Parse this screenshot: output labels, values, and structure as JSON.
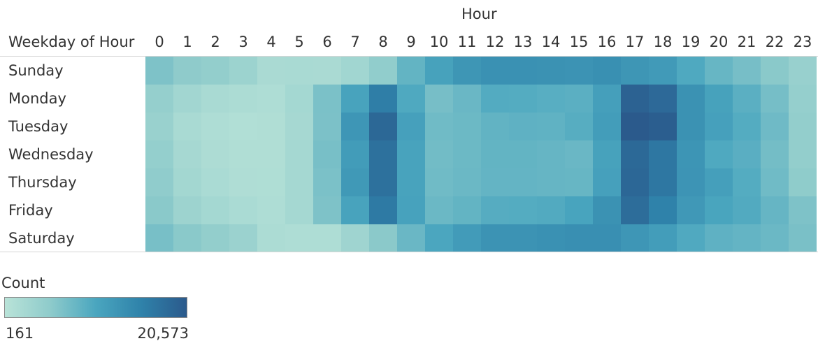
{
  "chart_data": {
    "type": "heatmap",
    "title": "",
    "column_header": "Hour",
    "row_header": "Weekday of Hour",
    "rows": [
      "Sunday",
      "Monday",
      "Tuesday",
      "Wednesday",
      "Thursday",
      "Friday",
      "Saturday"
    ],
    "columns": [
      "0",
      "1",
      "2",
      "3",
      "4",
      "5",
      "6",
      "7",
      "8",
      "9",
      "10",
      "11",
      "12",
      "13",
      "14",
      "15",
      "16",
      "17",
      "18",
      "19",
      "20",
      "21",
      "22",
      "23"
    ],
    "values": [
      [
        6500,
        5200,
        4700,
        3600,
        2000,
        2100,
        2000,
        3000,
        4900,
        8500,
        11000,
        12700,
        13300,
        13300,
        13200,
        13000,
        13500,
        12700,
        12000,
        10000,
        8200,
        7000,
        5600,
        4100
      ],
      [
        4400,
        2900,
        2100,
        1700,
        1500,
        2600,
        6700,
        10800,
        16000,
        10000,
        7000,
        8000,
        9700,
        9600,
        9300,
        9100,
        11300,
        19600,
        18600,
        13200,
        11000,
        9100,
        7100,
        4400
      ],
      [
        3900,
        2100,
        1500,
        1100,
        1200,
        2400,
        6600,
        12600,
        18800,
        11200,
        7500,
        7800,
        8600,
        8800,
        8700,
        9400,
        11700,
        20573,
        20000,
        13200,
        11200,
        9600,
        7600,
        4700
      ],
      [
        4500,
        2400,
        1600,
        1200,
        1200,
        2500,
        6900,
        11800,
        17600,
        10800,
        7400,
        7800,
        8500,
        8500,
        8300,
        8000,
        11000,
        18700,
        16900,
        12800,
        10000,
        9200,
        7200,
        4700
      ],
      [
        5000,
        2800,
        1900,
        1400,
        1300,
        2500,
        6700,
        12200,
        17700,
        10800,
        7500,
        7900,
        8400,
        8400,
        8300,
        8200,
        11200,
        18900,
        16900,
        12900,
        11300,
        9600,
        7500,
        5100
      ],
      [
        5600,
        3500,
        2600,
        1900,
        1500,
        2500,
        6500,
        10800,
        16500,
        10900,
        7900,
        8500,
        9500,
        9600,
        9800,
        10700,
        13200,
        18200,
        15500,
        12300,
        10500,
        9800,
        8300,
        6500
      ],
      [
        6900,
        5600,
        4700,
        3700,
        1700,
        1500,
        1500,
        3300,
        5500,
        8000,
        10300,
        11900,
        13000,
        13000,
        13300,
        13600,
        13600,
        12600,
        11700,
        9900,
        8800,
        8400,
        7900,
        6800
      ]
    ],
    "color_scale": {
      "title": "Count",
      "min_label": "161",
      "max_label": "20,573",
      "min": 161,
      "max": 20573,
      "colors": [
        "#b9e3d8",
        "#8ecbcb",
        "#4aa6bf",
        "#2f82aa",
        "#2b5a8c"
      ]
    }
  }
}
